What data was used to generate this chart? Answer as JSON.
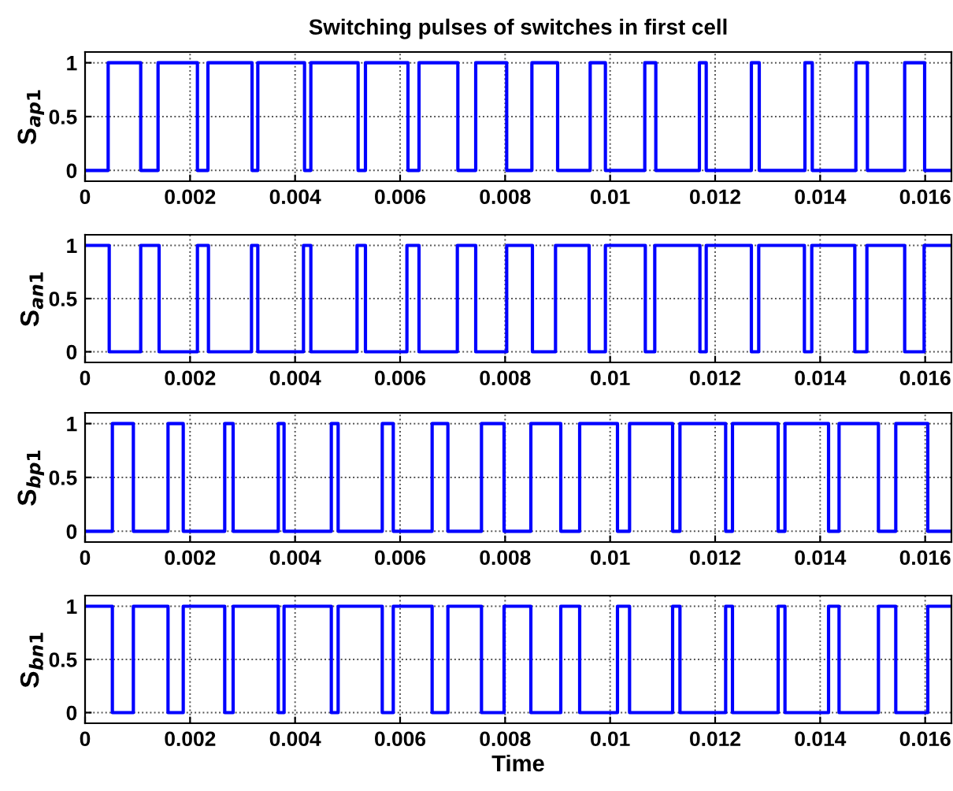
{
  "chart_data": [
    {
      "type": "step",
      "title": "Switching pulses of switches in first cell",
      "ylabel": "S$_{ap1}$",
      "xlim": [
        0,
        0.0165
      ],
      "ylim": [
        -0.1,
        1.1
      ],
      "yticks": [
        0,
        0.5,
        1
      ],
      "xticks": [
        0,
        0.002,
        0.004,
        0.006,
        0.008,
        0.01,
        0.012,
        0.014,
        0.016
      ],
      "grid": true,
      "series": [
        {
          "color": "#0000ff",
          "x": [
            0,
            0.00044,
            0.00106,
            0.00139,
            0.00214,
            0.00234,
            0.00318,
            0.00329,
            0.00418,
            0.0043,
            0.0052,
            0.00534,
            0.00615,
            0.00636,
            0.0071,
            0.00744,
            0.00803,
            0.00851,
            0.009,
            0.00962,
            0.00991,
            0.01066,
            0.01087,
            0.0117,
            0.01183,
            0.01269,
            0.01284,
            0.01371,
            0.01385,
            0.01468,
            0.0149,
            0.01561,
            0.01599,
            0.0165
          ],
          "values": [
            0,
            1,
            0,
            1,
            0,
            1,
            0,
            1,
            0,
            1,
            0,
            1,
            0,
            1,
            0,
            1,
            0,
            1,
            0,
            1,
            0,
            1,
            0,
            1,
            0,
            1,
            0,
            1,
            0,
            1,
            0,
            1,
            0,
            0
          ]
        }
      ]
    },
    {
      "type": "step",
      "ylabel": "S$_{an1}$",
      "xlim": [
        0,
        0.0165
      ],
      "ylim": [
        -0.1,
        1.1
      ],
      "yticks": [
        0,
        0.5,
        1
      ],
      "xticks": [
        0,
        0.002,
        0.004,
        0.006,
        0.008,
        0.01,
        0.012,
        0.014,
        0.016
      ],
      "grid": true,
      "series": [
        {
          "color": "#0000ff",
          "x": [
            0,
            0.00046,
            0.00106,
            0.00141,
            0.00214,
            0.00235,
            0.00317,
            0.00329,
            0.00416,
            0.0043,
            0.00518,
            0.00534,
            0.00613,
            0.00636,
            0.00709,
            0.00744,
            0.00803,
            0.00852,
            0.00896,
            0.0096,
            0.00991,
            0.01067,
            0.01085,
            0.01171,
            0.01183,
            0.01269,
            0.01283,
            0.0137,
            0.01384,
            0.01466,
            0.01489,
            0.01561,
            0.01598,
            0.0165
          ],
          "values": [
            1,
            0,
            1,
            0,
            1,
            0,
            1,
            0,
            1,
            0,
            1,
            0,
            1,
            0,
            1,
            0,
            1,
            0,
            1,
            0,
            1,
            0,
            1,
            0,
            1,
            0,
            1,
            0,
            1,
            0,
            1,
            0,
            1,
            1
          ]
        }
      ]
    },
    {
      "type": "step",
      "ylabel": "S$_{bp1}$",
      "xlim": [
        0,
        0.0165
      ],
      "ylim": [
        -0.1,
        1.1
      ],
      "yticks": [
        0,
        0.5,
        1
      ],
      "xticks": [
        0,
        0.002,
        0.004,
        0.006,
        0.008,
        0.01,
        0.012,
        0.014,
        0.016
      ],
      "grid": true,
      "series": [
        {
          "color": "#0000ff",
          "x": [
            0,
            0.00052,
            0.00092,
            0.00158,
            0.00187,
            0.00266,
            0.00282,
            0.00368,
            0.00379,
            0.00469,
            0.00482,
            0.00566,
            0.00587,
            0.00661,
            0.00691,
            0.00755,
            0.00798,
            0.00849,
            0.00906,
            0.00942,
            0.01014,
            0.01037,
            0.01119,
            0.01133,
            0.0122,
            0.01233,
            0.0132,
            0.01333,
            0.01416,
            0.01436,
            0.01511,
            0.01544,
            0.01605,
            0.0165
          ],
          "values": [
            0,
            1,
            0,
            1,
            0,
            1,
            0,
            1,
            0,
            1,
            0,
            1,
            0,
            1,
            0,
            1,
            0,
            1,
            0,
            1,
            0,
            1,
            0,
            1,
            0,
            1,
            0,
            1,
            0,
            1,
            0,
            1,
            0,
            0
          ]
        }
      ]
    },
    {
      "type": "step",
      "ylabel": "S$_{bn1}$",
      "xlabel": "Time",
      "xlim": [
        0,
        0.0165
      ],
      "ylim": [
        -0.1,
        1.1
      ],
      "yticks": [
        0,
        0.5,
        1
      ],
      "xticks": [
        0,
        0.002,
        0.004,
        0.006,
        0.008,
        0.01,
        0.012,
        0.014,
        0.016
      ],
      "grid": true,
      "series": [
        {
          "color": "#0000ff",
          "x": [
            0,
            0.00052,
            0.00092,
            0.00158,
            0.00187,
            0.00266,
            0.00282,
            0.00368,
            0.00379,
            0.00469,
            0.00482,
            0.00566,
            0.00587,
            0.00661,
            0.00691,
            0.00755,
            0.00798,
            0.00849,
            0.00906,
            0.00942,
            0.01014,
            0.01037,
            0.01119,
            0.01133,
            0.0122,
            0.01233,
            0.0132,
            0.01333,
            0.01416,
            0.01436,
            0.01511,
            0.01544,
            0.01605,
            0.0165
          ],
          "values": [
            1,
            0,
            1,
            0,
            1,
            0,
            1,
            0,
            1,
            0,
            1,
            0,
            1,
            0,
            1,
            0,
            1,
            0,
            1,
            0,
            1,
            0,
            1,
            0,
            1,
            0,
            1,
            0,
            1,
            0,
            1,
            0,
            1,
            1
          ]
        }
      ]
    }
  ]
}
